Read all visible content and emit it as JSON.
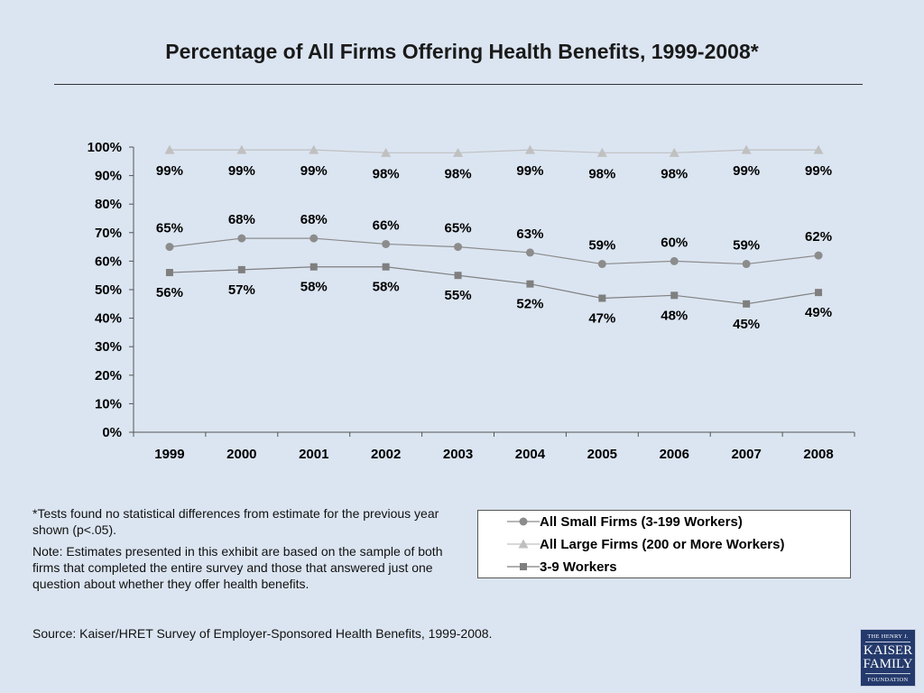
{
  "title": "Percentage of All Firms Offering Health Benefits, 1999-2008*",
  "footnotes": {
    "asterisk": "*Tests found no statistical differences from estimate for the previous year shown (p<.05).",
    "note": "Note: Estimates presented in this exhibit are based on the sample of both firms that completed the entire survey and those that answered just one question about whether they offer health benefits.",
    "source": "Source:  Kaiser/HRET Survey of Employer-Sponsored Health Benefits, 1999-2008."
  },
  "logo": {
    "line1": "THE HENRY J.",
    "line2": "KAISER",
    "line3": "FAMILY",
    "line4": "FOUNDATION"
  },
  "colors": {
    "background": "#dbe5f1",
    "small_firms": "#8c8c8c",
    "large_firms": "#c0c0c0",
    "workers_3_9": "#7f7f7f"
  },
  "chart_data": {
    "type": "line",
    "categories": [
      "1999",
      "2000",
      "2001",
      "2002",
      "2003",
      "2004",
      "2005",
      "2006",
      "2007",
      "2008"
    ],
    "ylim": [
      0,
      100
    ],
    "yticks": [
      "0%",
      "10%",
      "20%",
      "30%",
      "40%",
      "50%",
      "60%",
      "70%",
      "80%",
      "90%",
      "100%"
    ],
    "legend_position": "bottom-right",
    "series": [
      {
        "name": "All Small Firms (3-199 Workers)",
        "values": [
          65,
          68,
          68,
          66,
          65,
          63,
          59,
          60,
          59,
          62
        ],
        "labels": [
          "65%",
          "68%",
          "68%",
          "66%",
          "65%",
          "63%",
          "59%",
          "60%",
          "59%",
          "62%"
        ],
        "marker": "circle",
        "color": "#8c8c8c"
      },
      {
        "name": "All Large Firms (200 or More Workers)",
        "values": [
          99,
          99,
          99,
          98,
          98,
          99,
          98,
          98,
          99,
          99
        ],
        "labels": [
          "99%",
          "99%",
          "99%",
          "98%",
          "98%",
          "99%",
          "98%",
          "98%",
          "99%",
          "99%"
        ],
        "marker": "triangle",
        "color": "#c0c0c0"
      },
      {
        "name": "3-9 Workers",
        "values": [
          56,
          57,
          58,
          58,
          55,
          52,
          47,
          48,
          45,
          49
        ],
        "labels": [
          "56%",
          "57%",
          "58%",
          "58%",
          "55%",
          "52%",
          "47%",
          "48%",
          "45%",
          "49%"
        ],
        "marker": "square",
        "color": "#7f7f7f"
      }
    ]
  }
}
